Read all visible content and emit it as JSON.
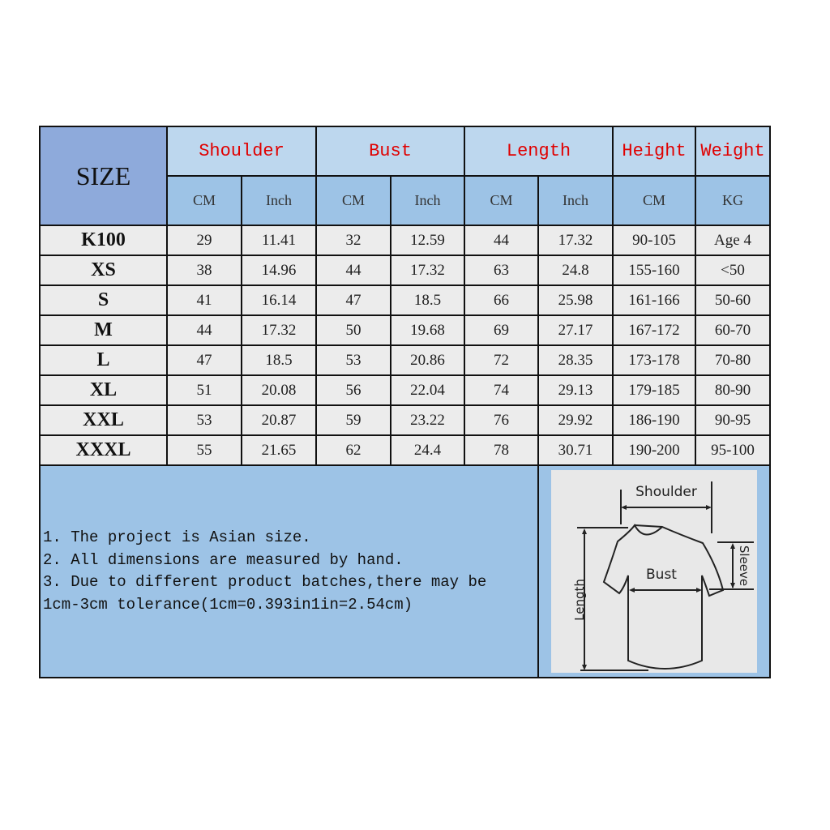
{
  "table": {
    "size_label": "SIZE",
    "groups": [
      "Shoulder",
      "Bust",
      "Length",
      "Height",
      "Weight"
    ],
    "units": [
      "CM",
      "Inch",
      "CM",
      "Inch",
      "CM",
      "Inch",
      "CM",
      "KG"
    ],
    "rows": [
      [
        "K100",
        "29",
        "11.41",
        "32",
        "12.59",
        "44",
        "17.32",
        "90-105",
        "Age 4"
      ],
      [
        "XS",
        "38",
        "14.96",
        "44",
        "17.32",
        "63",
        "24.8",
        "155-160",
        "<50"
      ],
      [
        "S",
        "41",
        "16.14",
        "47",
        "18.5",
        "66",
        "25.98",
        "161-166",
        "50-60"
      ],
      [
        "M",
        "44",
        "17.32",
        "50",
        "19.68",
        "69",
        "27.17",
        "167-172",
        "60-70"
      ],
      [
        "L",
        "47",
        "18.5",
        "53",
        "20.86",
        "72",
        "28.35",
        "173-178",
        "70-80"
      ],
      [
        "XL",
        "51",
        "20.08",
        "56",
        "22.04",
        "74",
        "29.13",
        "179-185",
        "80-90"
      ],
      [
        "XXL",
        "53",
        "20.87",
        "59",
        "23.22",
        "76",
        "29.92",
        "186-190",
        "90-95"
      ],
      [
        "XXXL",
        "55",
        "21.65",
        "62",
        "24.4",
        "78",
        "30.71",
        "190-200",
        "95-100"
      ]
    ]
  },
  "notes": [
    "1. The project is Asian size.",
    "2. All dimensions are measured by hand.",
    "3. Due to different product batches,there may be",
    "1cm-3cm tolerance(1cm=0.393in1in=2.54cm)"
  ],
  "diagram": {
    "shoulder": "Shoulder",
    "bust": "Bust",
    "length": "Length",
    "sleeve": "Sleeve"
  },
  "colors": {
    "header_text": "#e00000",
    "size_header": "#8eaadb",
    "group_header": "#bdd7ee",
    "unit_header": "#9dc3e6"
  }
}
